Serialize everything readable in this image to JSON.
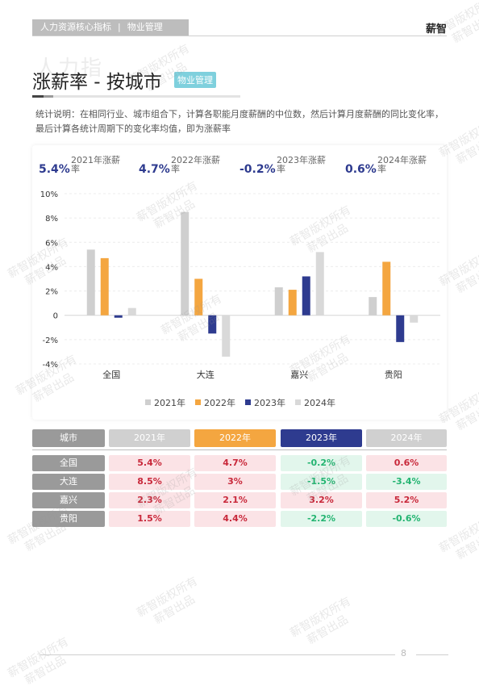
{
  "header": {
    "section": "人力资源核心指标",
    "separator": "|",
    "subsection": "物业管理",
    "brand": "薪智"
  },
  "ghost_text": "人力指",
  "page_title": "涨薪率 - 按城市",
  "badge": "物业管理",
  "note": "统计说明：在相同行业、城市组合下，计算各职能月度薪酬的中位数，然后计算月度薪酬的同比变化率，最后计算各统计周期下的变化率均值，即为涨薪率",
  "stats": [
    {
      "value": "5.4%",
      "label": "2021年涨薪率"
    },
    {
      "value": "4.7%",
      "label": "2022年涨薪率"
    },
    {
      "value": "-0.2%",
      "label": "2023年涨薪率"
    },
    {
      "value": "0.6%",
      "label": "2024年涨薪率"
    }
  ],
  "chart_data": {
    "type": "bar",
    "categories": [
      "全国",
      "大连",
      "嘉兴",
      "贵阳"
    ],
    "series": [
      {
        "name": "2021年",
        "color": "#cfcfcf",
        "values": [
          5.4,
          8.5,
          2.3,
          1.5
        ]
      },
      {
        "name": "2022年",
        "color": "#f4a640",
        "values": [
          4.7,
          3.0,
          2.1,
          4.4
        ]
      },
      {
        "name": "2023年",
        "color": "#2e3b8f",
        "values": [
          -0.2,
          -1.5,
          3.2,
          -2.2
        ]
      },
      {
        "name": "2024年",
        "color": "#d9d9d9",
        "values": [
          0.6,
          -3.4,
          5.2,
          -0.6
        ]
      }
    ],
    "yticks": [
      "10%",
      "8%",
      "6%",
      "4%",
      "2%",
      "0",
      "-2%",
      "-4%"
    ],
    "ylim": [
      -4,
      10
    ],
    "grid": true,
    "legend": "bottom"
  },
  "table": {
    "header": [
      "城市",
      "2021年",
      "2022年",
      "2023年",
      "2024年"
    ],
    "header_colors": [
      "#9a9a9a",
      "#d0d0d0",
      "#f4a640",
      "#2e3b8f",
      "#d0d0d0"
    ],
    "rows": [
      {
        "city": "全国",
        "values": [
          "5.4%",
          "4.7%",
          "-0.2%",
          "0.6%"
        ]
      },
      {
        "city": "大连",
        "values": [
          "8.5%",
          "3%",
          "-1.5%",
          "-3.4%"
        ]
      },
      {
        "city": "嘉兴",
        "values": [
          "2.3%",
          "2.1%",
          "3.2%",
          "5.2%"
        ]
      },
      {
        "city": "贵阳",
        "values": [
          "1.5%",
          "4.4%",
          "-2.2%",
          "-0.6%"
        ]
      }
    ]
  },
  "watermark": [
    "薪智版权所有",
    "薪智出品"
  ],
  "page_number": "8"
}
